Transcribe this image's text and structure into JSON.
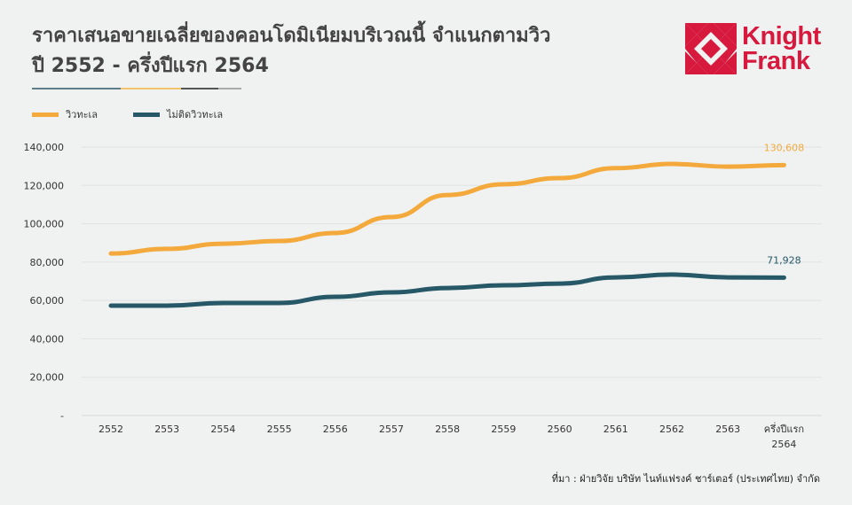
{
  "title_line1": "ราคาเสนอขายเฉลี่ยของคอนโดมิเนียมบริเวณนี้ จำแนกตามวิว",
  "title_line2": "ปี 2552 - ครึ่งปีแรก 2564",
  "logo": {
    "line1": "Knight",
    "line2": "Frank",
    "color": "#d7193e"
  },
  "source": "ที่มา : ฝ่ายวิจัย บริษัท ไนท์แฟรงค์ ชาร์เตอร์ (ประเทศไทย) จำกัด",
  "chart_data": {
    "type": "line",
    "categories": [
      "2552",
      "2553",
      "2554",
      "2555",
      "2556",
      "2557",
      "2558",
      "2559",
      "2560",
      "2561",
      "2562",
      "2563",
      "ครึ่งปีแรก 2564"
    ],
    "ylim": [
      0,
      140000
    ],
    "yticks": [
      "-",
      "20,000",
      "40,000",
      "60,000",
      "80,000",
      "100,000",
      "120,000",
      "140,000"
    ],
    "yticks_values": [
      0,
      20000,
      40000,
      60000,
      80000,
      100000,
      120000,
      140000
    ],
    "grid": true,
    "legend_position": "top-left",
    "series": [
      {
        "name": "วิวทะเล",
        "color": "#f3a93c",
        "values": [
          84500,
          86900,
          89600,
          91000,
          95200,
          103500,
          115000,
          120600,
          123800,
          129000,
          131200,
          129800,
          130608
        ],
        "end_label": "130,608"
      },
      {
        "name": "ไม่ติดวิวทะเล",
        "color": "#265867",
        "values": [
          57300,
          57300,
          58700,
          58700,
          61900,
          64200,
          66500,
          67900,
          68800,
          72000,
          73500,
          72000,
          71928
        ],
        "end_label": "71,928"
      }
    ]
  }
}
